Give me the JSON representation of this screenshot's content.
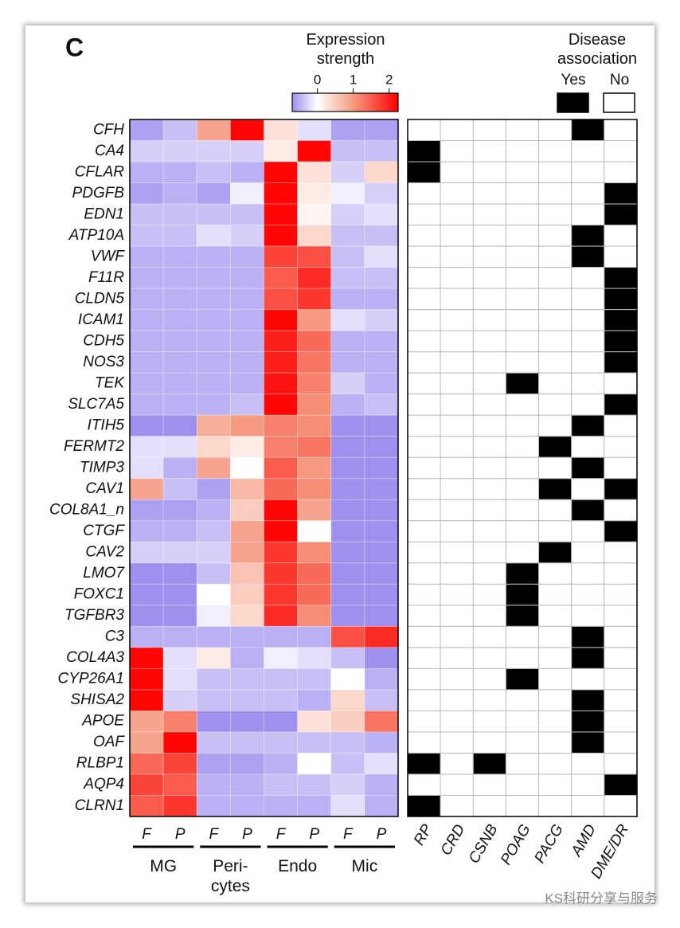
{
  "chart_data": {
    "type": "heatmap",
    "panel_label": "C",
    "colorbar_title": "Expression strength",
    "clim": [
      -0.7,
      2.25
    ],
    "cticks": [
      0,
      1,
      2
    ],
    "colormap": [
      [
        -0.7,
        "#9f90ee"
      ],
      [
        0,
        "#ffffff"
      ],
      [
        1,
        "#f59a80"
      ],
      [
        2.25,
        "#ff0000"
      ]
    ],
    "rows": [
      "CFH",
      "CA4",
      "CFLAR",
      "PDGFB",
      "EDN1",
      "ATP10A",
      "VWF",
      "F11R",
      "CLDN5",
      "ICAM1",
      "CDH5",
      "NOS3",
      "TEK",
      "SLC7A5",
      "ITIH5",
      "FERMT2",
      "TIMP3",
      "CAV1",
      "COL8A1_n",
      "CTGF",
      "CAV2",
      "LMO7",
      "FOXC1",
      "TGFBR3",
      "C3",
      "COL4A3",
      "CYP26A1",
      "SHISA2",
      "APOE",
      "OAF",
      "RLBP1",
      "AQP4",
      "CLRN1"
    ],
    "columns": [
      "F",
      "P",
      "F",
      "P",
      "F",
      "P",
      "F",
      "P"
    ],
    "groups": [
      "MG",
      "Peri-cytes",
      "Endo",
      "Mic"
    ],
    "values": [
      [
        -0.6,
        -0.4,
        0.9,
        2.2,
        0.3,
        -0.2,
        -0.6,
        -0.6
      ],
      [
        -0.3,
        -0.3,
        -0.3,
        -0.3,
        0.2,
        2.2,
        -0.4,
        -0.4
      ],
      [
        -0.5,
        -0.5,
        -0.4,
        -0.5,
        2.2,
        0.3,
        -0.3,
        0.4
      ],
      [
        -0.6,
        -0.5,
        -0.6,
        -0.1,
        2.2,
        0.2,
        -0.1,
        -0.3
      ],
      [
        -0.4,
        -0.4,
        -0.4,
        -0.4,
        2.2,
        0.1,
        -0.3,
        -0.2
      ],
      [
        -0.4,
        -0.4,
        -0.2,
        -0.3,
        2.2,
        0.4,
        -0.4,
        -0.4
      ],
      [
        -0.5,
        -0.5,
        -0.5,
        -0.5,
        1.7,
        1.6,
        -0.4,
        -0.2
      ],
      [
        -0.5,
        -0.5,
        -0.5,
        -0.5,
        1.5,
        1.9,
        -0.4,
        -0.4
      ],
      [
        -0.5,
        -0.5,
        -0.5,
        -0.5,
        1.6,
        1.8,
        -0.5,
        -0.5
      ],
      [
        -0.5,
        -0.5,
        -0.5,
        -0.5,
        2.2,
        1.0,
        -0.2,
        -0.3
      ],
      [
        -0.5,
        -0.5,
        -0.5,
        -0.5,
        2.0,
        1.4,
        -0.5,
        -0.5
      ],
      [
        -0.5,
        -0.5,
        -0.5,
        -0.5,
        2.0,
        1.3,
        -0.5,
        -0.5
      ],
      [
        -0.5,
        -0.5,
        -0.5,
        -0.5,
        2.1,
        1.2,
        -0.3,
        -0.5
      ],
      [
        -0.5,
        -0.5,
        -0.5,
        -0.4,
        2.2,
        1.1,
        -0.5,
        -0.4
      ],
      [
        -0.7,
        -0.7,
        0.8,
        1.0,
        1.2,
        1.1,
        -0.7,
        -0.7
      ],
      [
        -0.2,
        -0.2,
        0.4,
        0.2,
        1.2,
        1.3,
        -0.7,
        -0.7
      ],
      [
        -0.2,
        -0.5,
        0.9,
        0.0,
        1.5,
        1.0,
        -0.7,
        -0.7
      ],
      [
        0.9,
        -0.4,
        -0.6,
        0.7,
        1.4,
        1.1,
        -0.7,
        -0.7
      ],
      [
        -0.6,
        -0.6,
        -0.5,
        0.5,
        2.2,
        0.9,
        -0.7,
        -0.7
      ],
      [
        -0.5,
        -0.5,
        -0.4,
        0.9,
        2.2,
        0.0,
        -0.7,
        -0.7
      ],
      [
        -0.3,
        -0.3,
        -0.3,
        0.9,
        1.8,
        1.1,
        -0.7,
        -0.7
      ],
      [
        -0.7,
        -0.7,
        -0.4,
        0.6,
        1.8,
        1.4,
        -0.7,
        -0.7
      ],
      [
        -0.7,
        -0.7,
        0.0,
        0.5,
        1.8,
        1.4,
        -0.7,
        -0.7
      ],
      [
        -0.7,
        -0.7,
        -0.1,
        0.4,
        1.9,
        1.1,
        -0.7,
        -0.7
      ],
      [
        -0.5,
        -0.5,
        -0.5,
        -0.5,
        -0.5,
        -0.5,
        1.6,
        1.9
      ],
      [
        2.2,
        -0.2,
        0.2,
        -0.5,
        -0.1,
        -0.2,
        -0.4,
        -0.7
      ],
      [
        2.2,
        -0.2,
        -0.4,
        -0.4,
        -0.4,
        -0.4,
        0.0,
        -0.5
      ],
      [
        2.2,
        -0.3,
        -0.4,
        -0.4,
        -0.4,
        -0.5,
        0.4,
        -0.4
      ],
      [
        0.9,
        1.2,
        -0.7,
        -0.7,
        -0.7,
        0.3,
        0.5,
        1.3
      ],
      [
        0.9,
        2.2,
        -0.4,
        -0.4,
        -0.4,
        -0.4,
        -0.4,
        -0.5
      ],
      [
        1.4,
        1.7,
        -0.6,
        -0.6,
        -0.5,
        0.0,
        -0.4,
        -0.2
      ],
      [
        1.7,
        1.5,
        -0.5,
        -0.5,
        -0.4,
        -0.4,
        -0.3,
        -0.5
      ],
      [
        1.5,
        1.8,
        -0.5,
        -0.5,
        -0.5,
        -0.5,
        -0.2,
        -0.5
      ]
    ],
    "disease": {
      "title": "Disease association",
      "legend": [
        {
          "label": "Yes",
          "color": "#000000"
        },
        {
          "label": "No",
          "color": "#ffffff"
        }
      ],
      "categories": [
        "RP",
        "CRD",
        "CSNB",
        "POAG",
        "PACG",
        "AMD",
        "DME/DR"
      ],
      "values": [
        [
          0,
          0,
          0,
          0,
          0,
          1,
          0
        ],
        [
          1,
          0,
          0,
          0,
          0,
          0,
          0
        ],
        [
          1,
          0,
          0,
          0,
          0,
          0,
          0
        ],
        [
          0,
          0,
          0,
          0,
          0,
          0,
          1
        ],
        [
          0,
          0,
          0,
          0,
          0,
          0,
          1
        ],
        [
          0,
          0,
          0,
          0,
          0,
          1,
          0
        ],
        [
          0,
          0,
          0,
          0,
          0,
          1,
          0
        ],
        [
          0,
          0,
          0,
          0,
          0,
          0,
          1
        ],
        [
          0,
          0,
          0,
          0,
          0,
          0,
          1
        ],
        [
          0,
          0,
          0,
          0,
          0,
          0,
          1
        ],
        [
          0,
          0,
          0,
          0,
          0,
          0,
          1
        ],
        [
          0,
          0,
          0,
          0,
          0,
          0,
          1
        ],
        [
          0,
          0,
          0,
          1,
          0,
          0,
          0
        ],
        [
          0,
          0,
          0,
          0,
          0,
          0,
          1
        ],
        [
          0,
          0,
          0,
          0,
          0,
          1,
          0
        ],
        [
          0,
          0,
          0,
          0,
          1,
          0,
          0
        ],
        [
          0,
          0,
          0,
          0,
          0,
          1,
          0
        ],
        [
          0,
          0,
          0,
          0,
          1,
          0,
          1
        ],
        [
          0,
          0,
          0,
          0,
          0,
          1,
          0
        ],
        [
          0,
          0,
          0,
          0,
          0,
          0,
          1
        ],
        [
          0,
          0,
          0,
          0,
          1,
          0,
          0
        ],
        [
          0,
          0,
          0,
          1,
          0,
          0,
          0
        ],
        [
          0,
          0,
          0,
          1,
          0,
          0,
          0
        ],
        [
          0,
          0,
          0,
          1,
          0,
          0,
          0
        ],
        [
          0,
          0,
          0,
          0,
          0,
          1,
          0
        ],
        [
          0,
          0,
          0,
          0,
          0,
          1,
          0
        ],
        [
          0,
          0,
          0,
          1,
          0,
          0,
          0
        ],
        [
          0,
          0,
          0,
          0,
          0,
          1,
          0
        ],
        [
          0,
          0,
          0,
          0,
          0,
          1,
          0
        ],
        [
          0,
          0,
          0,
          0,
          0,
          1,
          0
        ],
        [
          1,
          0,
          1,
          0,
          0,
          0,
          0
        ],
        [
          0,
          0,
          0,
          0,
          0,
          0,
          1
        ],
        [
          1,
          0,
          0,
          0,
          0,
          0,
          0
        ]
      ]
    },
    "watermark": "KS科研分享与服务"
  }
}
